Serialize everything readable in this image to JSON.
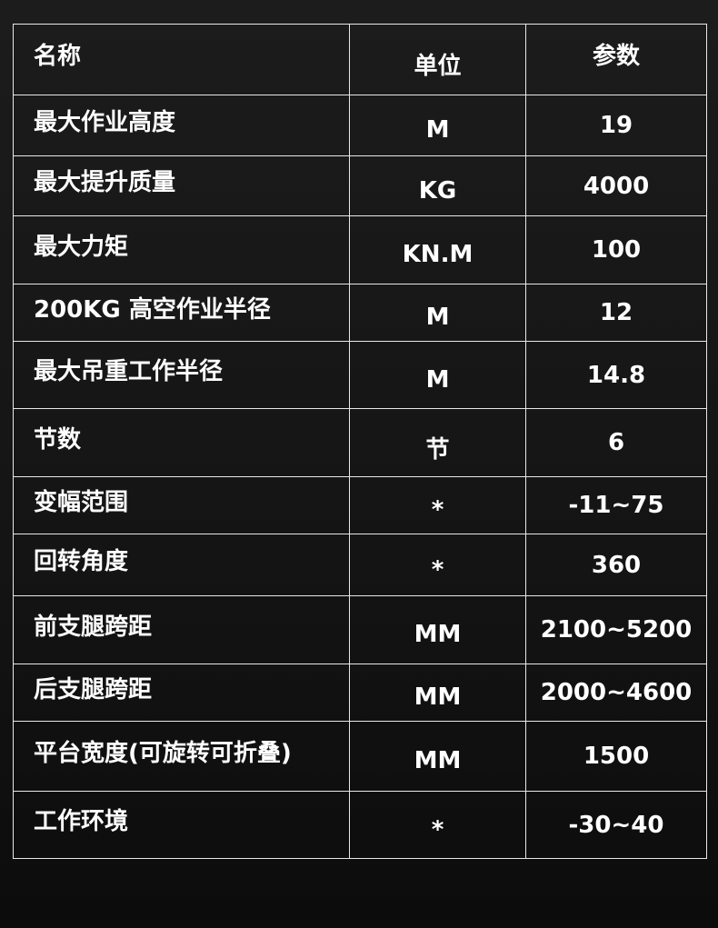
{
  "header": {
    "name": "名称",
    "unit": "单位",
    "param": "参数"
  },
  "rows": [
    {
      "name": "最大作业高度",
      "unit": "M",
      "value": "19"
    },
    {
      "name": "最大提升质量",
      "unit": "KG",
      "value": "4000"
    },
    {
      "name": "最大力矩",
      "unit": "KN.M",
      "value": "100"
    },
    {
      "name": "200KG 高空作业半径",
      "unit": "M",
      "value": "12"
    },
    {
      "name": "最大吊重工作半径",
      "unit": "M",
      "value": "14.8"
    },
    {
      "name": "节数",
      "unit": "节",
      "value": "6"
    },
    {
      "name": "变幅范围",
      "unit": "*",
      "value": "-11~75"
    },
    {
      "name": "回转角度",
      "unit": "*",
      "value": "360"
    },
    {
      "name": "前支腿跨距",
      "unit": "MM",
      "value": "2100~5200"
    },
    {
      "name": "后支腿跨距",
      "unit": "MM",
      "value": "2000~4600"
    },
    {
      "name": "平台宽度(可旋转可折叠)",
      "unit": "MM",
      "value": "1500"
    },
    {
      "name": "工作环境",
      "unit": "*",
      "value": "-30~40"
    }
  ]
}
